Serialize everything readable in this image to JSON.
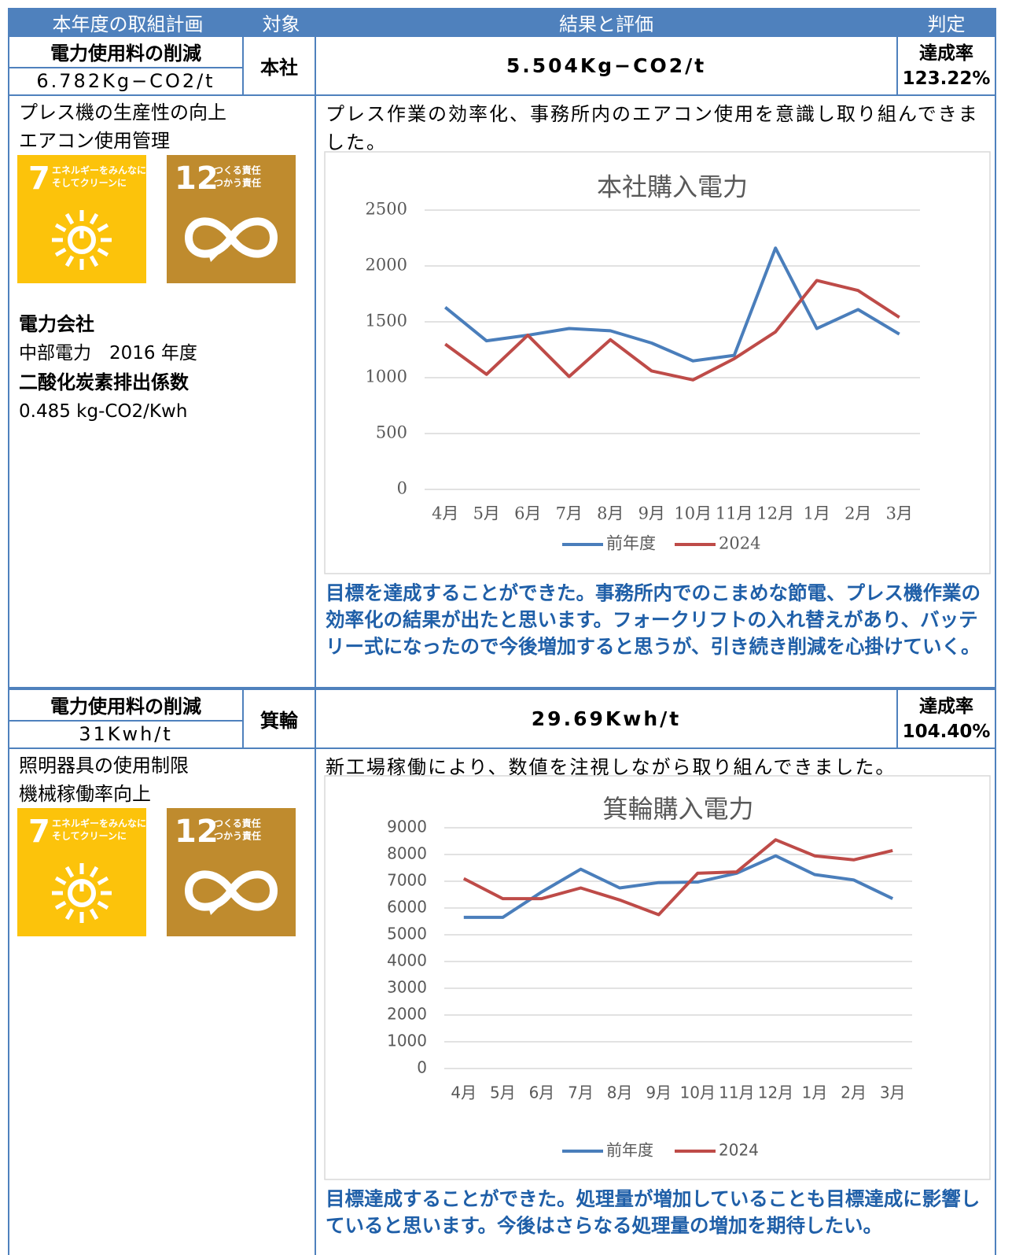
{
  "header": {
    "plan": "本年度の取組計画",
    "target": "対象",
    "result": "結果と評価",
    "judgement": "判定"
  },
  "sections": [
    {
      "goal_title": "電力使用料の削減",
      "goal_value": "6.782Kg−CO2/t",
      "target": "本社",
      "result_value": "5.504Kg−CO2/t",
      "rate_label": "達成率",
      "rate_value": "123.22%",
      "plan_lines": [
        "プレス機の生産性の向上",
        "エアコン使用管理"
      ],
      "sdgs": [
        {
          "number": "7",
          "label": [
            "エネルギーをみんなに",
            "そしてクリーンに"
          ]
        },
        {
          "number": "12",
          "label": [
            "つくる責任",
            "つかう責任"
          ]
        }
      ],
      "notes": [
        "電力会社",
        "中部電力　2016 年度",
        "二酸化炭素排出係数",
        "0.485 kg-CO2/Kwh"
      ],
      "description": "プレス作業の効率化、事務所内のエアコン使用を意識し取り組んできました。",
      "evaluation": "目標を達成することができた。事務所内でのこまめな節電、プレス機作業の効率化の結果が出たと思います。フォークリフトの入れ替えがあり、バッテリー式になったので今後増加すると思うが、引き続き削減を心掛けていく。"
    },
    {
      "goal_title": "電力使用料の削減",
      "goal_value": "31Kwh/t",
      "target": "箕輪",
      "result_value": "29.69Kwh/t",
      "rate_label": "達成率",
      "rate_value": "104.40%",
      "plan_lines": [
        "照明器具の使用制限",
        "機械稼働率向上"
      ],
      "sdgs": [
        {
          "number": "7",
          "label": [
            "エネルギーをみんなに",
            "そしてクリーンに"
          ]
        },
        {
          "number": "12",
          "label": [
            "つくる責任",
            "つかう責任"
          ]
        }
      ],
      "notes": [],
      "description": "新工場稼働により、数値を注視しながら取り組んできました。",
      "evaluation": "目標達成することができた。処理量が増加していることも目標達成に影響していると思います。今後はさらなる処理量の増加を期待したい。"
    }
  ],
  "chart_data": [
    {
      "type": "line",
      "title": "本社購入電力",
      "categories": [
        "4月",
        "5月",
        "6月",
        "7月",
        "8月",
        "9月",
        "10月",
        "11月",
        "12月",
        "1月",
        "2月",
        "3月"
      ],
      "series": [
        {
          "name": "前年度",
          "color": "#4a7ebb",
          "values": [
            1630,
            1330,
            1380,
            1440,
            1420,
            1310,
            1150,
            1200,
            2160,
            1440,
            1610,
            1390
          ]
        },
        {
          "name": "2024",
          "color": "#be4b48",
          "values": [
            1300,
            1030,
            1380,
            1010,
            1340,
            1060,
            980,
            1170,
            1410,
            1870,
            1780,
            1540
          ]
        }
      ],
      "ylim": [
        0,
        2500
      ],
      "yticks": [
        0,
        500,
        1000,
        1500,
        2000,
        2500
      ],
      "grid": true,
      "legend": "bottom"
    },
    {
      "type": "line",
      "title": "箕輪購入電力",
      "categories": [
        "4月",
        "5月",
        "6月",
        "7月",
        "8月",
        "9月",
        "10月",
        "11月",
        "12月",
        "1月",
        "2月",
        "3月"
      ],
      "series": [
        {
          "name": "前年度",
          "color": "#4a7ebb",
          "values": [
            5650,
            5650,
            6600,
            7450,
            6750,
            6950,
            6970,
            7300,
            7950,
            7250,
            7050,
            6350
          ]
        },
        {
          "name": "2024",
          "color": "#be4b48",
          "values": [
            7100,
            6350,
            6350,
            6750,
            6300,
            5750,
            7300,
            7350,
            8550,
            7950,
            7800,
            8150
          ]
        }
      ],
      "ylim": [
        0,
        9000
      ],
      "yticks": [
        0,
        1000,
        2000,
        3000,
        4000,
        5000,
        6000,
        7000,
        8000,
        9000
      ],
      "grid": true,
      "legend": "bottom"
    }
  ]
}
